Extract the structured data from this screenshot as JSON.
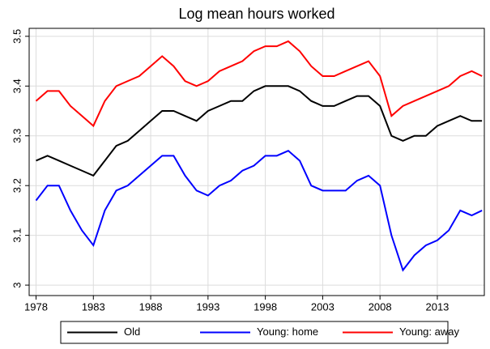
{
  "chart_data": {
    "type": "line",
    "title": "Log mean hours worked",
    "x": [
      1978,
      1979,
      1980,
      1981,
      1982,
      1983,
      1984,
      1985,
      1986,
      1987,
      1988,
      1989,
      1990,
      1991,
      1992,
      1993,
      1994,
      1995,
      1996,
      1997,
      1998,
      1999,
      2000,
      2001,
      2002,
      2003,
      2004,
      2005,
      2006,
      2007,
      2008,
      2009,
      2010,
      2011,
      2012,
      2013,
      2014,
      2015,
      2016,
      2016.9
    ],
    "series": [
      {
        "name": "Old",
        "color": "#000000",
        "values": [
          3.25,
          3.26,
          3.25,
          3.24,
          3.23,
          3.22,
          3.25,
          3.28,
          3.29,
          3.31,
          3.33,
          3.35,
          3.35,
          3.34,
          3.33,
          3.35,
          3.36,
          3.37,
          3.37,
          3.39,
          3.4,
          3.4,
          3.4,
          3.39,
          3.37,
          3.36,
          3.36,
          3.37,
          3.38,
          3.38,
          3.36,
          3.3,
          3.29,
          3.3,
          3.3,
          3.32,
          3.33,
          3.34,
          3.33,
          3.33
        ]
      },
      {
        "name": "Young: home",
        "color": "#0000ff",
        "values": [
          3.17,
          3.2,
          3.2,
          3.15,
          3.11,
          3.08,
          3.15,
          3.19,
          3.2,
          3.22,
          3.24,
          3.26,
          3.26,
          3.22,
          3.19,
          3.18,
          3.2,
          3.21,
          3.23,
          3.24,
          3.26,
          3.26,
          3.27,
          3.25,
          3.2,
          3.19,
          3.19,
          3.19,
          3.21,
          3.22,
          3.2,
          3.1,
          3.03,
          3.06,
          3.08,
          3.09,
          3.11,
          3.15,
          3.14,
          3.15
        ]
      },
      {
        "name": "Young: away",
        "color": "#ff0000",
        "values": [
          3.37,
          3.39,
          3.39,
          3.36,
          3.34,
          3.32,
          3.37,
          3.4,
          3.41,
          3.42,
          3.44,
          3.46,
          3.44,
          3.41,
          3.4,
          3.41,
          3.43,
          3.44,
          3.45,
          3.47,
          3.48,
          3.48,
          3.49,
          3.47,
          3.44,
          3.42,
          3.42,
          3.43,
          3.44,
          3.45,
          3.42,
          3.34,
          3.36,
          3.37,
          3.38,
          3.39,
          3.4,
          3.42,
          3.43,
          3.42
        ]
      }
    ],
    "xlim": [
      1977.4,
      2017.1
    ],
    "xticks": [
      1978,
      1983,
      1988,
      1993,
      1998,
      2003,
      2008,
      2013
    ],
    "ylim": [
      2.979,
      3.516
    ],
    "yticks": [
      3,
      3.1,
      3.2,
      3.3,
      3.4,
      3.5
    ],
    "grid": true,
    "legend": "bottom"
  }
}
